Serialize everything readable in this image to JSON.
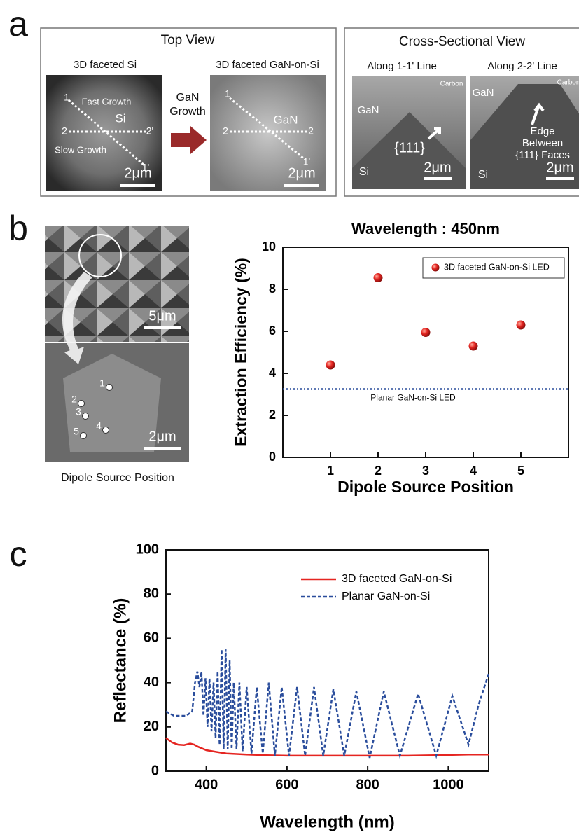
{
  "panel_a": {
    "label": "a",
    "top_view": {
      "title": "Top View",
      "left_caption": "3D faceted Si",
      "right_caption": "3D faceted GaN-on-Si",
      "arrow_label": [
        "GaN",
        "Growth"
      ],
      "si_labels": [
        "1",
        "Fast Growth",
        "Si",
        "2",
        "2'",
        "Slow Growth",
        "1'"
      ],
      "gan_labels": [
        "1",
        "GaN",
        "2",
        "2",
        "1'"
      ]
    },
    "cross_section": {
      "title": "Cross-Sectional View",
      "left_caption": "Along 1-1' Line",
      "right_caption": "Along 2-2' Line",
      "left_labels": [
        "Carbon",
        "GaN",
        "{111}",
        "Si"
      ],
      "right_labels": [
        "GaN",
        "Carbon",
        "Edge",
        "Between",
        "{111} Faces",
        "Si"
      ]
    },
    "scale_bar": "2μm"
  },
  "panel_b": {
    "label": "b",
    "top_scale_bar": "5μm",
    "bottom_scale_bar": "2μm",
    "positions": [
      "1",
      "2",
      "3",
      "4",
      "5"
    ],
    "caption": "Dipole Source Position"
  },
  "panel_c": {
    "label": "c"
  },
  "chart_data": [
    {
      "type": "scatter",
      "title": "Wavelength : 450nm",
      "x_label": "Dipole Source Position",
      "y_label": "Extraction Efficiency (%)",
      "x": [
        1,
        2,
        3,
        4,
        5
      ],
      "xlim": [
        0,
        6
      ],
      "xticks": [
        1,
        2,
        3,
        4,
        5
      ],
      "ylim": [
        0,
        10
      ],
      "yticks": [
        0,
        2,
        4,
        6,
        8,
        10
      ],
      "series": [
        {
          "name": "3D faceted GaN-on-Si LED",
          "color": "#e52521",
          "values": [
            4.4,
            8.55,
            5.95,
            5.3,
            6.3
          ]
        }
      ],
      "reference_lines": [
        {
          "value": 3.25,
          "label": "Planar GaN-on-Si LED",
          "color": "#2a4d9c"
        }
      ],
      "legend": "upper right"
    },
    {
      "type": "line",
      "x_label": "Wavelength (nm)",
      "y_label": "Reflectance (%)",
      "xlim": [
        300,
        1100
      ],
      "xticks": [
        400,
        600,
        800,
        1000
      ],
      "ylim": [
        0,
        100
      ],
      "yticks": [
        0,
        20,
        40,
        60,
        80,
        100
      ],
      "legend": "upper right",
      "series": [
        {
          "name": "3D faceted GaN-on-Si",
          "color": "#e52521",
          "dash": false,
          "x": [
            300,
            315,
            330,
            345,
            360,
            370,
            380,
            400,
            425,
            450,
            500,
            550,
            600,
            700,
            800,
            900,
            1000,
            1050,
            1100
          ],
          "values": [
            15,
            13,
            12,
            11.8,
            12.5,
            12,
            11,
            9.5,
            8.7,
            8,
            7.5,
            7.2,
            7,
            7,
            7,
            7,
            7.3,
            7.5,
            7.5
          ]
        },
        {
          "name": "Planar GaN-on-Si",
          "color": "#2a4d9c",
          "dash": true,
          "x": [
            300,
            320,
            350,
            365,
            372,
            378,
            383,
            388,
            393,
            398,
            403,
            408,
            413,
            418,
            423,
            428,
            433,
            438,
            443,
            448,
            453,
            458,
            463,
            468,
            475,
            482,
            490,
            500,
            512,
            525,
            540,
            555,
            570,
            587,
            605,
            625,
            645,
            667,
            690,
            715,
            742,
            772,
            805,
            840,
            880,
            925,
            970,
            1010,
            1050,
            1075,
            1100
          ],
          "values": [
            27,
            25,
            25,
            27,
            40,
            45,
            38,
            45,
            25,
            42,
            20,
            42,
            18,
            40,
            15,
            45,
            12,
            55,
            10,
            55,
            10,
            50,
            10,
            40,
            10,
            40,
            9,
            38,
            8,
            38,
            8,
            40,
            7,
            38,
            7,
            38,
            7,
            38,
            7,
            37,
            7,
            36,
            6,
            36,
            7,
            35,
            7,
            34,
            12,
            30,
            44
          ]
        }
      ]
    }
  ]
}
